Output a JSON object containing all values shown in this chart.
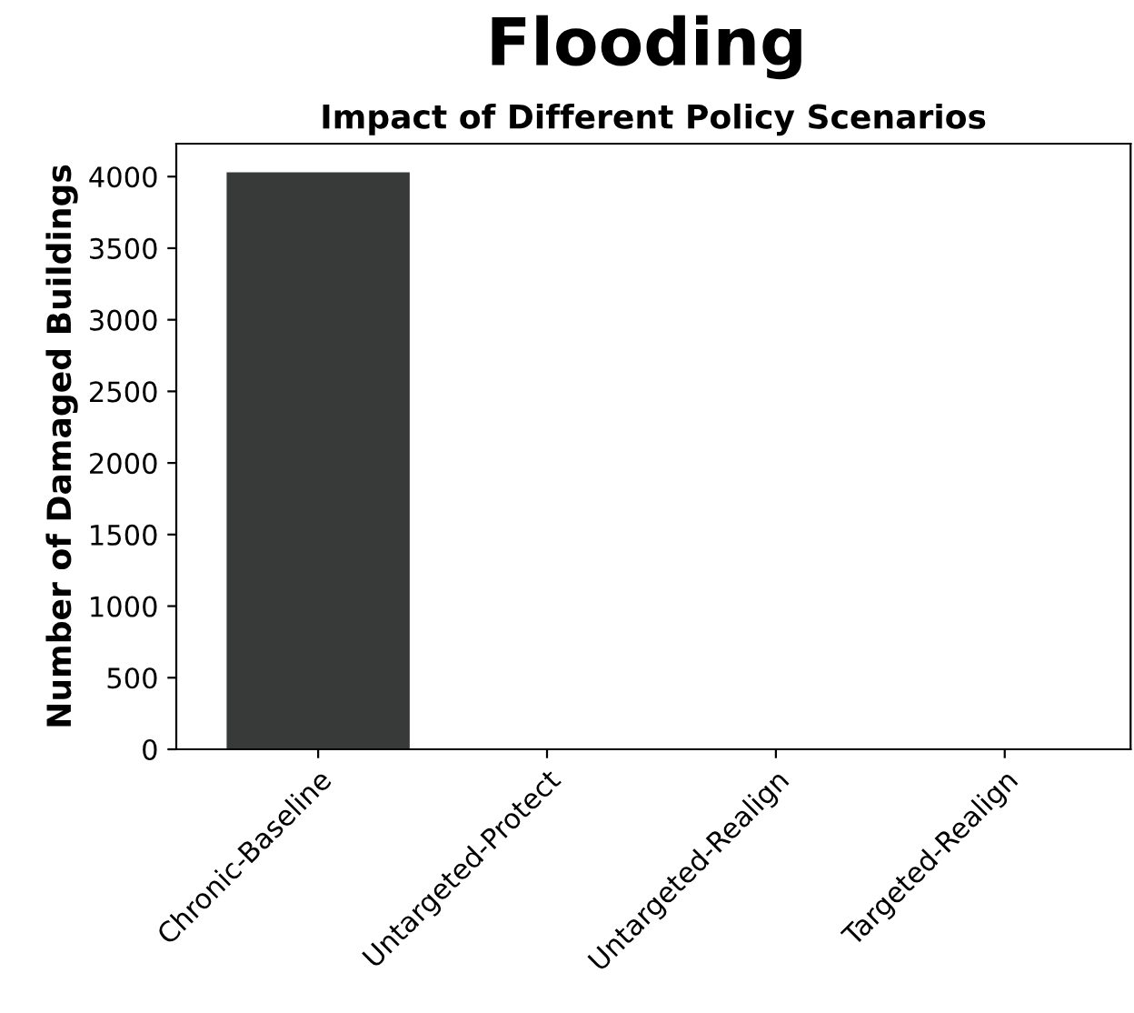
{
  "chart_data": {
    "type": "bar",
    "title": "Flooding",
    "subtitle": "Impact of Different Policy Scenarios",
    "ylabel": "Number of Damaged Buildings",
    "categories": [
      "Chronic-Baseline",
      "Untargeted-Protect",
      "Untargeted-Realign",
      "Targeted-Realign"
    ],
    "values": [
      4030,
      0,
      0,
      0
    ],
    "color": "#383a3a",
    "ylim": [
      0,
      4230
    ],
    "yticks": [
      0,
      500,
      1000,
      1500,
      2000,
      2500,
      3000,
      3500,
      4000
    ],
    "grid": false
  }
}
